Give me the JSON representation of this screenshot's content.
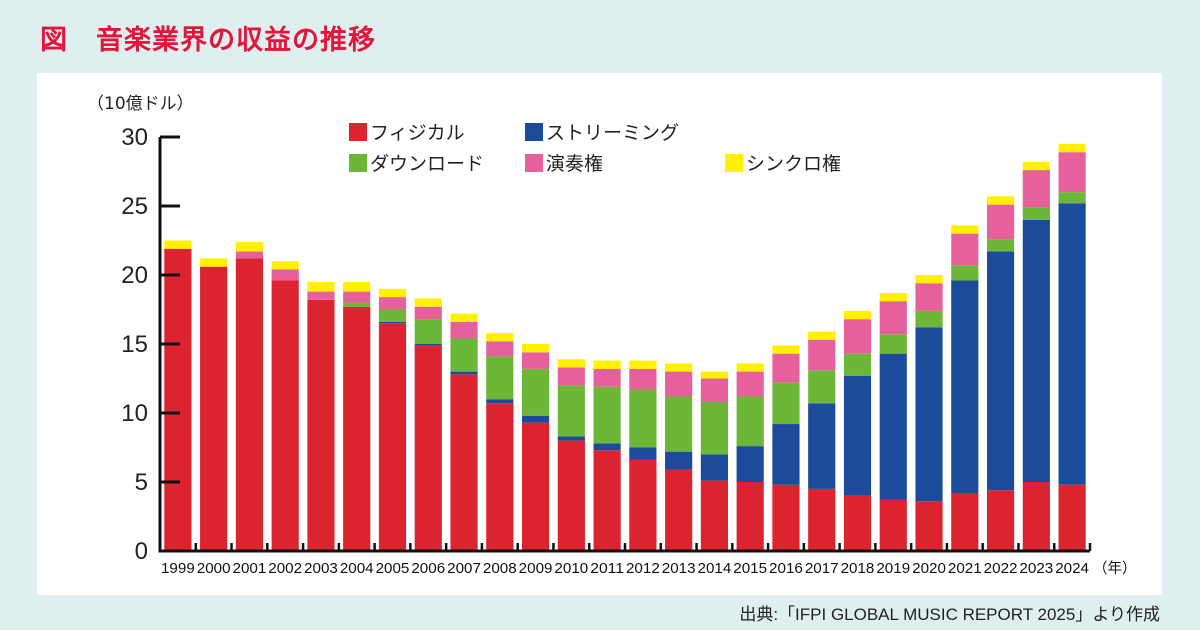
{
  "figure": {
    "title": "図　音楽業界の収益の推移",
    "source": "出典:「IFPI GLOBAL MUSIC REPORT 2025」より作成"
  },
  "chart_data": {
    "type": "bar",
    "stacked": true,
    "title": "音楽業界の収益の推移",
    "xlabel": "（年）",
    "ylabel": "（10億ドル）",
    "ylim": [
      0,
      30
    ],
    "yticks": [
      0,
      5,
      10,
      15,
      20,
      25,
      30
    ],
    "grid": false,
    "legend_position": "top",
    "categories": [
      "1999",
      "2000",
      "2001",
      "2002",
      "2003",
      "2004",
      "2005",
      "2006",
      "2007",
      "2008",
      "2009",
      "2010",
      "2011",
      "2012",
      "2013",
      "2014",
      "2015",
      "2016",
      "2017",
      "2018",
      "2019",
      "2020",
      "2021",
      "2022",
      "2023",
      "2024"
    ],
    "series": [
      {
        "name": "フィジカル",
        "color": "#dc2430",
        "values": [
          21.9,
          20.6,
          21.2,
          19.6,
          18.2,
          17.7,
          16.5,
          14.9,
          12.8,
          10.7,
          9.3,
          8.0,
          7.3,
          6.6,
          5.9,
          5.1,
          5.0,
          4.8,
          4.5,
          4.0,
          3.7,
          3.6,
          4.2,
          4.4,
          5.0,
          4.8
        ]
      },
      {
        "name": "ストリーミング",
        "color": "#1d4b9b",
        "values": [
          0,
          0,
          0,
          0,
          0,
          0,
          0.1,
          0.1,
          0.2,
          0.3,
          0.5,
          0.3,
          0.5,
          0.9,
          1.3,
          1.9,
          2.6,
          4.4,
          6.2,
          8.7,
          10.6,
          12.6,
          15.4,
          17.3,
          19.0,
          20.4
        ]
      },
      {
        "name": "ダウンロード",
        "color": "#6cb737",
        "values": [
          0,
          0,
          0,
          0,
          0,
          0.3,
          0.9,
          1.8,
          2.4,
          3.1,
          3.4,
          3.7,
          4.1,
          4.2,
          4.0,
          3.8,
          3.6,
          3.0,
          2.4,
          1.6,
          1.4,
          1.2,
          1.1,
          0.9,
          0.9,
          0.8
        ]
      },
      {
        "name": "演奏権",
        "color": "#e6619c",
        "values": [
          0,
          0,
          0.5,
          0.8,
          0.6,
          0.8,
          0.9,
          0.9,
          1.2,
          1.1,
          1.2,
          1.3,
          1.3,
          1.5,
          1.8,
          1.7,
          1.8,
          2.1,
          2.2,
          2.5,
          2.4,
          2.0,
          2.3,
          2.5,
          2.7,
          2.9
        ]
      },
      {
        "name": "シンクロ権",
        "color": "#fff100",
        "values": [
          0.6,
          0.6,
          0.7,
          0.6,
          0.7,
          0.7,
          0.6,
          0.6,
          0.6,
          0.6,
          0.6,
          0.6,
          0.6,
          0.6,
          0.6,
          0.5,
          0.6,
          0.6,
          0.6,
          0.6,
          0.6,
          0.6,
          0.6,
          0.6,
          0.6,
          0.6
        ]
      }
    ],
    "legend": [
      {
        "label": "フィジカル",
        "color": "#dc2430"
      },
      {
        "label": "ストリーミング",
        "color": "#1d4b9b"
      },
      {
        "label": "ダウンロード",
        "color": "#6cb737"
      },
      {
        "label": "演奏権",
        "color": "#e6619c"
      },
      {
        "label": "シンクロ権",
        "color": "#fff100"
      }
    ]
  }
}
